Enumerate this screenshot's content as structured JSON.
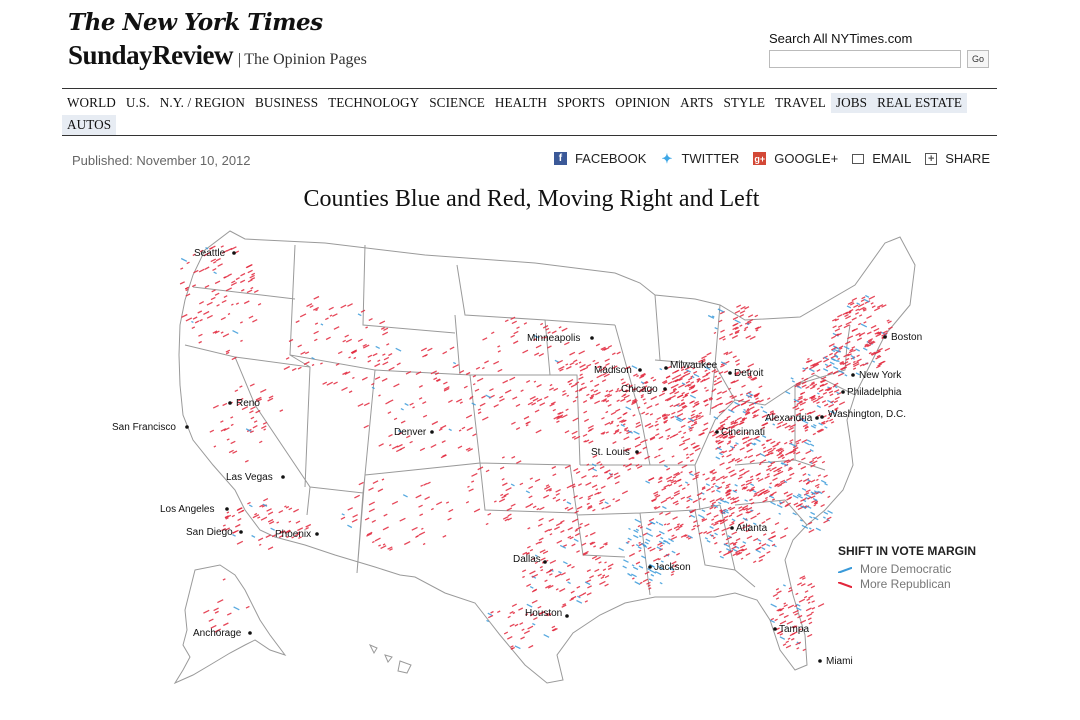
{
  "header": {
    "logo": "The New York Times",
    "section": "SundayReview",
    "section_sep": "|",
    "section_sub": "The Opinion Pages",
    "search_label": "Search All NYTimes.com",
    "search_value": "",
    "search_button": "Go"
  },
  "nav": {
    "row1": [
      "WORLD",
      "U.S.",
      "N.Y. / REGION",
      "BUSINESS",
      "TECHNOLOGY",
      "SCIENCE",
      "HEALTH",
      "SPORTS",
      "OPINION",
      "ARTS",
      "STYLE",
      "TRAVEL",
      "JOBS",
      "REAL ESTATE"
    ],
    "row2": [
      "AUTOS"
    ]
  },
  "article": {
    "published": "Published: November 10, 2012",
    "title": "Counties Blue and Red, Moving Right and Left"
  },
  "share": {
    "facebook": "FACEBOOK",
    "twitter": "TWITTER",
    "google": "GOOGLE+",
    "email": "EMAIL",
    "share": "SHARE"
  },
  "map": {
    "cities": [
      "Seattle",
      "Reno",
      "San Francisco",
      "Las Vegas",
      "Los Angeles",
      "San Diego",
      "Phoenix",
      "Denver",
      "Minneapolis",
      "Madison",
      "Milwaukee",
      "Chicago",
      "Detroit",
      "St. Louis",
      "Cincinnati",
      "Alexandria",
      "Washington, D.C.",
      "Boston",
      "New York",
      "Philadelphia",
      "Dallas",
      "Houston",
      "Jackson",
      "Atlanta",
      "Tampa",
      "Miami",
      "Anchorage"
    ],
    "colors": {
      "democratic": "#3a9ad9",
      "republican": "#e2263b",
      "boundary": "#9a9a9a"
    }
  },
  "legend": {
    "title": "SHIFT IN VOTE MARGIN",
    "items": [
      {
        "label": "More Democratic",
        "color": "#3a9ad9"
      },
      {
        "label": "More Republican",
        "color": "#e2263b"
      }
    ]
  }
}
